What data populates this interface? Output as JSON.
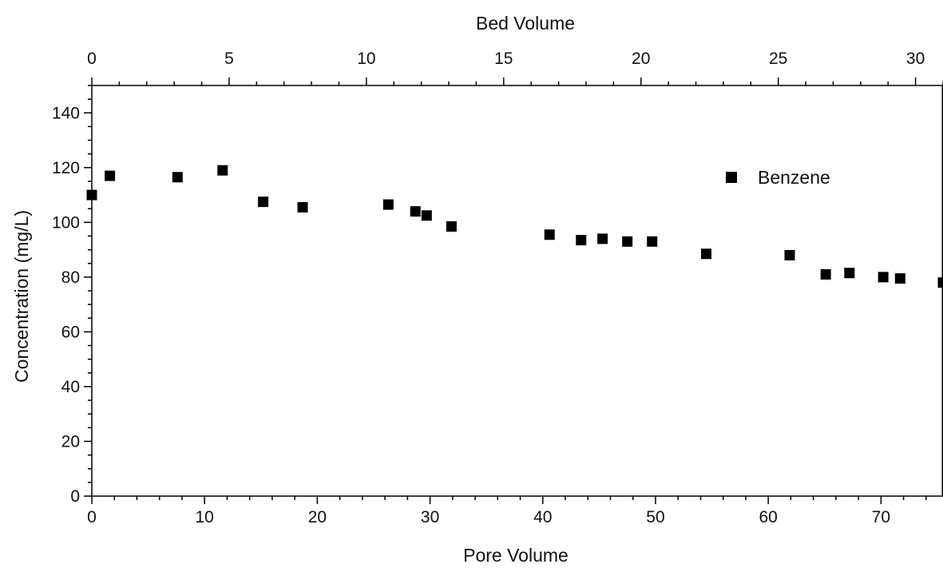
{
  "chart_data": {
    "type": "scatter",
    "xlabel": "Pore Volume",
    "ylabel": "Concentration (mg/L)",
    "x2label": "Bed Volume",
    "xlim": [
      0,
      75.5
    ],
    "ylim": [
      0,
      150
    ],
    "x2lim": [
      0,
      31.0
    ],
    "x_ticks": [
      0,
      10,
      20,
      30,
      40,
      50,
      60,
      70
    ],
    "y_ticks": [
      0,
      20,
      40,
      60,
      80,
      100,
      120,
      140
    ],
    "x2_ticks": [
      0,
      5,
      10,
      15,
      20,
      25,
      30
    ],
    "grid": false,
    "legend_position": "top-right",
    "marker": "filled-square",
    "color": "#000000",
    "series": [
      {
        "name": "Benzene",
        "x": [
          0,
          1.6,
          7.6,
          11.6,
          15.2,
          18.7,
          26.3,
          28.7,
          29.7,
          31.9,
          40.6,
          43.4,
          45.3,
          47.5,
          49.7,
          54.5,
          61.9,
          65.1,
          67.2,
          70.2,
          71.7,
          75.5
        ],
        "y": [
          110,
          117,
          116.5,
          119,
          107.5,
          105.5,
          106.5,
          104,
          102.5,
          98.5,
          95.5,
          93.5,
          94,
          93,
          93,
          88.5,
          88,
          81,
          81.5,
          80,
          79.5,
          78
        ]
      }
    ]
  }
}
